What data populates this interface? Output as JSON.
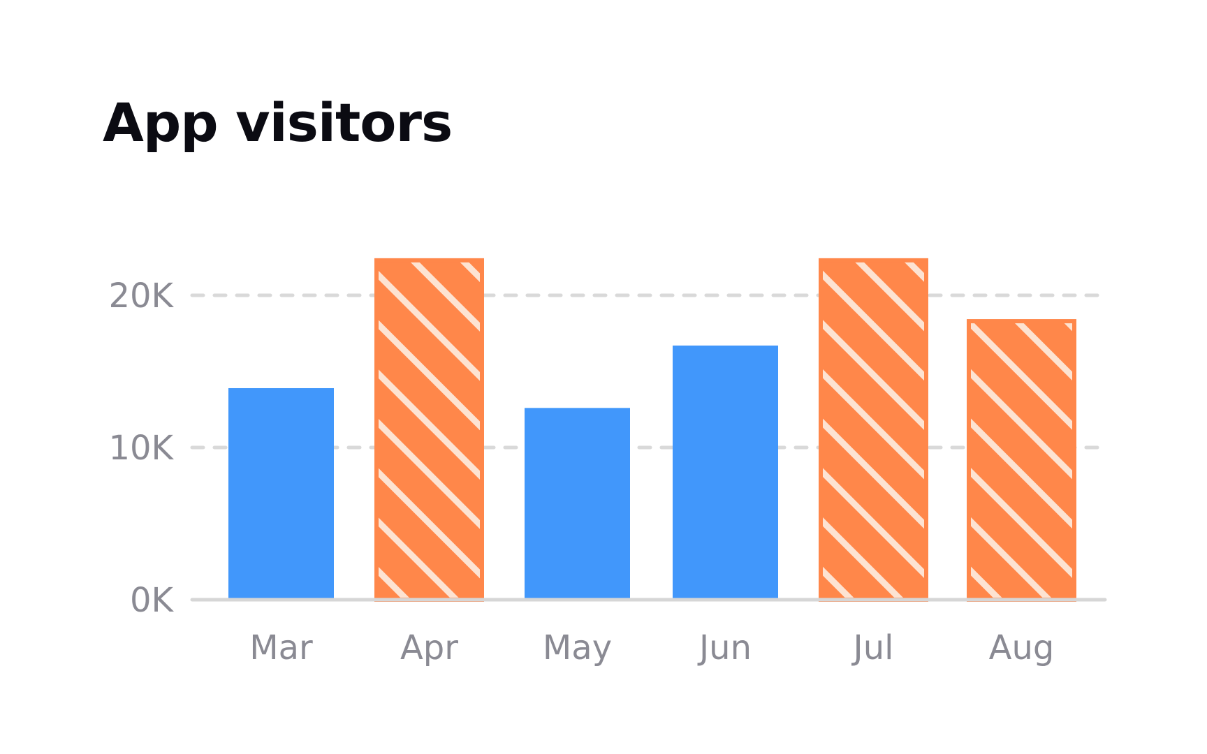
{
  "chart_data": {
    "type": "bar",
    "title": "App visitors",
    "xlabel": "",
    "ylabel": "",
    "categories": [
      "Mar",
      "Apr",
      "May",
      "Jun",
      "Jul",
      "Aug"
    ],
    "values": [
      13900,
      22300,
      12600,
      16700,
      22300,
      18300
    ],
    "highlighted": [
      false,
      true,
      false,
      false,
      true,
      true
    ],
    "ylim": [
      0,
      22300
    ],
    "yticks": [
      0,
      10000,
      20000
    ],
    "ytick_labels": [
      "0K",
      "10K",
      "20K"
    ],
    "grid": "dashed horizontal",
    "colors": {
      "default": "#4197fb",
      "highlight": "#ff874a",
      "hatch": "#fde3d2",
      "grid": "#d9d9d9",
      "baseline": "#d6d6d6",
      "tick_text": "#8a8a93"
    }
  }
}
